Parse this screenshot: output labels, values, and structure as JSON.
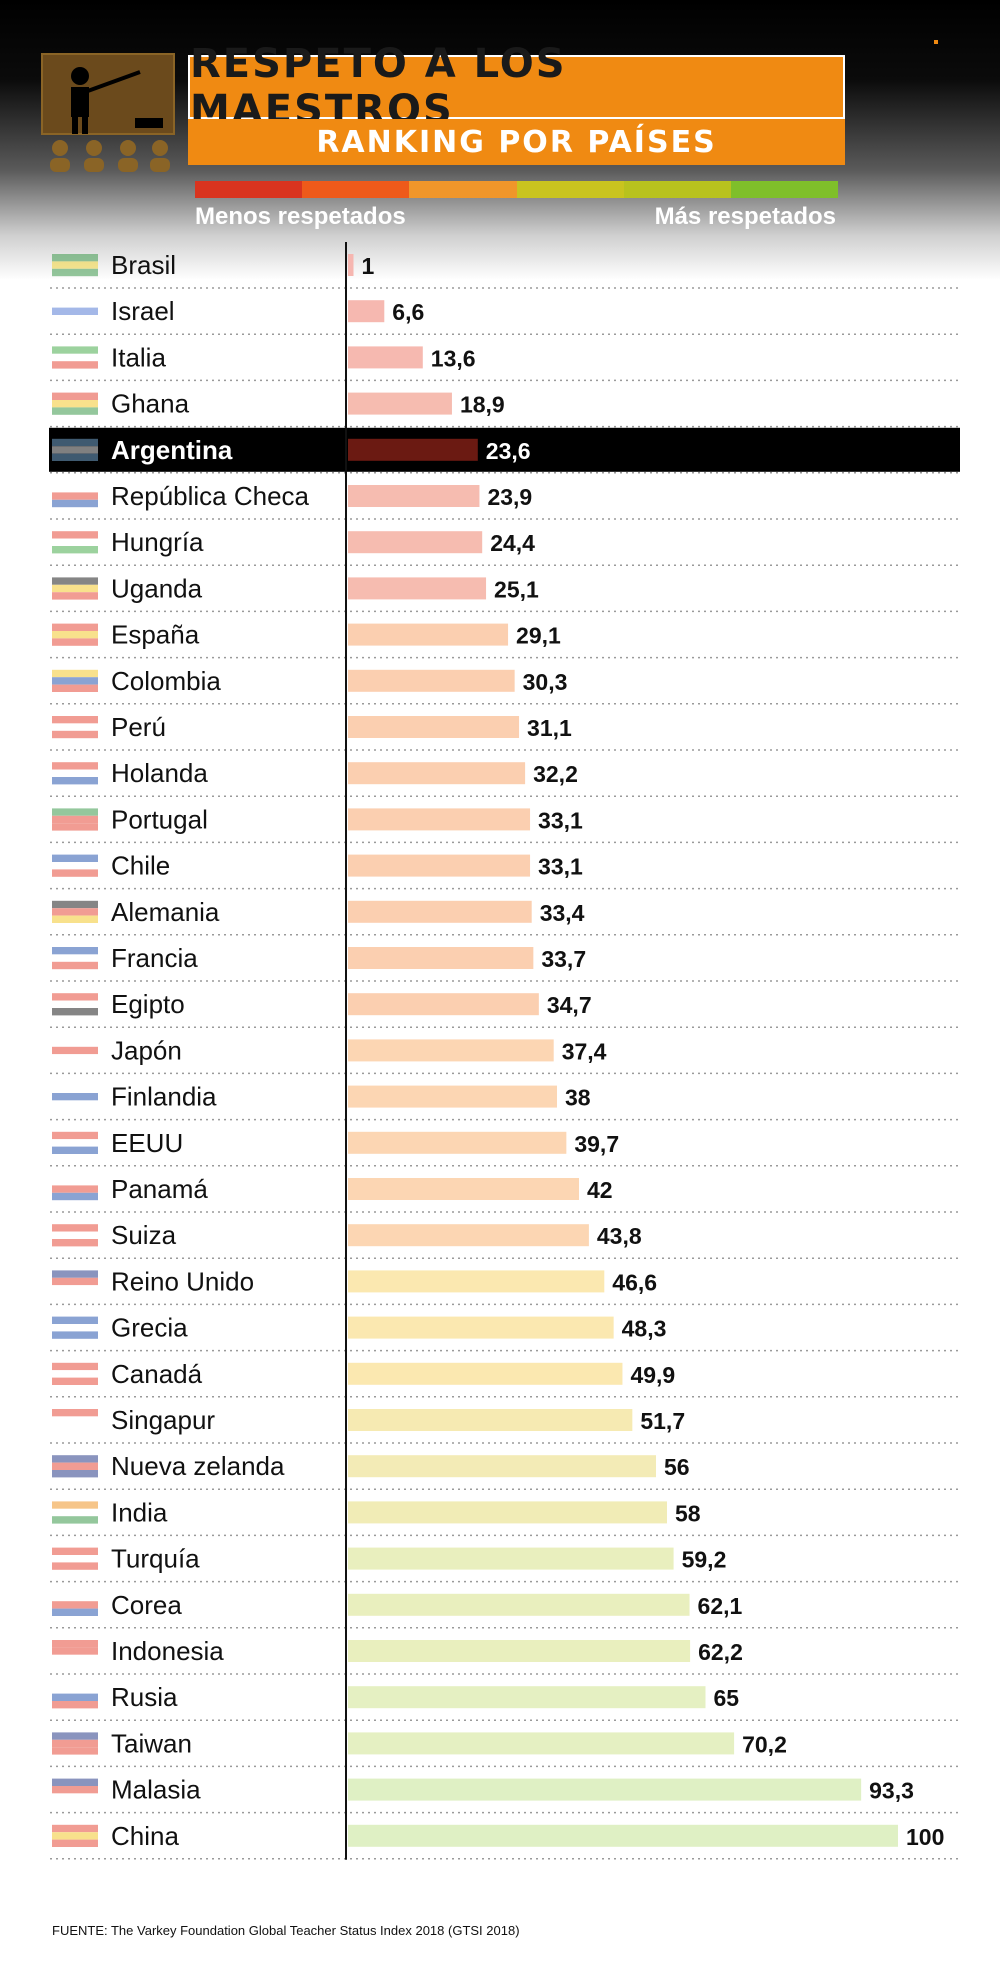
{
  "header": {
    "title": "RESPETO A LOS MAESTROS",
    "subtitle": "RANKING POR PAÍSES",
    "scale_left_label": "Menos respetados",
    "scale_right_label": "Más respetados",
    "scale_colors": [
      "#d9341f",
      "#ee5a1a",
      "#f0962a",
      "#c9c41f",
      "#b8c21e",
      "#7fbf2a"
    ],
    "icon": "teacher-classroom-icon"
  },
  "chart_data": {
    "type": "bar",
    "orientation": "horizontal",
    "title": "RESPETO A LOS MAESTROS",
    "subtitle": "RANKING POR PAÍSES",
    "highlight": "Argentina",
    "categories": [
      "Brasil",
      "Israel",
      "Italia",
      "Ghana",
      "Argentina",
      "República Checa",
      "Hungría",
      "Uganda",
      "España",
      "Colombia",
      "Perú",
      "Holanda",
      "Portugal",
      "Chile",
      "Alemania",
      "Francia",
      "Egipto",
      "Japón",
      "Finlandia",
      "EEUU",
      "Panamá",
      "Suiza",
      "Reino Unido",
      "Grecia",
      "Canadá",
      "Singapur",
      "Nueva zelanda",
      "India",
      "Turquía",
      "Corea",
      "Indonesia",
      "Rusia",
      "Taiwan",
      "Malasia",
      "China"
    ],
    "values": [
      1,
      6.6,
      13.6,
      18.9,
      23.6,
      23.9,
      24.4,
      25.1,
      29.1,
      30.3,
      31.1,
      32.2,
      33.1,
      33.1,
      33.4,
      33.7,
      34.7,
      37.4,
      38,
      39.7,
      42,
      43.8,
      46.6,
      48.3,
      49.9,
      51.7,
      56,
      58,
      59.2,
      62.1,
      62.2,
      65,
      70.2,
      93.3,
      100
    ],
    "value_labels": [
      "1",
      "6,6",
      "13,6",
      "18,9",
      "23,6",
      "23,9",
      "24,4",
      "25,1",
      "29,1",
      "30,3",
      "31,1",
      "32,2",
      "33,1",
      "33,1",
      "33,4",
      "33,7",
      "34,7",
      "37,4",
      "38",
      "39,7",
      "42",
      "43,8",
      "46,6",
      "48,3",
      "49,9",
      "51,7",
      "56",
      "58",
      "59,2",
      "62,1",
      "62,2",
      "65",
      "70,2",
      "93,3",
      "100"
    ],
    "bar_colors": [
      "#f6b6b0",
      "#f6b8b0",
      "#f6b9b0",
      "#f6bcb0",
      "#6b1a12",
      "#f6bcb0",
      "#f6bcb0",
      "#f6bcb0",
      "#fbcfb0",
      "#fbcfb0",
      "#fbcfb0",
      "#fbcfb0",
      "#fbcfb0",
      "#fbcfb0",
      "#fbcfb0",
      "#fbcfb0",
      "#fbcfb0",
      "#fcd6b3",
      "#fcd6b3",
      "#fcd6b3",
      "#fcd6b3",
      "#fcd6b3",
      "#fbe8b0",
      "#fbe8b0",
      "#fbe8b0",
      "#f6eab2",
      "#f3ebb6",
      "#f1ecb6",
      "#e9efbe",
      "#e9efbe",
      "#e9efbe",
      "#e5f0c2",
      "#e5f0c2",
      "#dff0c4",
      "#dff0c4"
    ],
    "flag_colors": [
      [
        "#3e9a4d",
        "#f1d43b",
        "#3e9a4d"
      ],
      [
        "#ffffff",
        "#5a7fd6",
        "#ffffff"
      ],
      [
        "#4caf50",
        "#ffffff",
        "#e74c3c"
      ],
      [
        "#e54a3a",
        "#f4c92f",
        "#3e9a4d"
      ],
      [
        "#7fb3e0",
        "#ffffff",
        "#7fb3e0"
      ],
      [
        "#ffffff",
        "#e74c3c",
        "#2c58b0"
      ],
      [
        "#e74c3c",
        "#ffffff",
        "#4caf50"
      ],
      [
        "#222222",
        "#f4c92f",
        "#e74c3c"
      ],
      [
        "#e74c3c",
        "#f4c92f",
        "#e74c3c"
      ],
      [
        "#f4c92f",
        "#2c58b0",
        "#e74c3c"
      ],
      [
        "#e74c3c",
        "#ffffff",
        "#e74c3c"
      ],
      [
        "#e74c3c",
        "#ffffff",
        "#2c58b0"
      ],
      [
        "#3e9a4d",
        "#e74c3c",
        "#e74c3c"
      ],
      [
        "#2c58b0",
        "#ffffff",
        "#e74c3c"
      ],
      [
        "#222222",
        "#e74c3c",
        "#f4c92f"
      ],
      [
        "#2c58b0",
        "#ffffff",
        "#e74c3c"
      ],
      [
        "#e74c3c",
        "#ffffff",
        "#222222"
      ],
      [
        "#ffffff",
        "#e74c3c",
        "#ffffff"
      ],
      [
        "#ffffff",
        "#2c58b0",
        "#ffffff"
      ],
      [
        "#e74c3c",
        "#ffffff",
        "#2c58b0"
      ],
      [
        "#ffffff",
        "#e74c3c",
        "#2c58b0"
      ],
      [
        "#e74c3c",
        "#ffffff",
        "#e74c3c"
      ],
      [
        "#2c3e8a",
        "#e74c3c",
        "#ffffff"
      ],
      [
        "#2c58b0",
        "#ffffff",
        "#2c58b0"
      ],
      [
        "#e74c3c",
        "#ffffff",
        "#e74c3c"
      ],
      [
        "#e74c3c",
        "#ffffff",
        "#ffffff"
      ],
      [
        "#2c3e8a",
        "#e74c3c",
        "#2c3e8a"
      ],
      [
        "#f0962a",
        "#ffffff",
        "#3e9a4d"
      ],
      [
        "#e74c3c",
        "#ffffff",
        "#e74c3c"
      ],
      [
        "#ffffff",
        "#e74c3c",
        "#2c58b0"
      ],
      [
        "#e74c3c",
        "#e74c3c",
        "#ffffff"
      ],
      [
        "#ffffff",
        "#2c58b0",
        "#e74c3c"
      ],
      [
        "#2c3e8a",
        "#e74c3c",
        "#e74c3c"
      ],
      [
        "#2c3e8a",
        "#e74c3c",
        "#ffffff"
      ],
      [
        "#e74c3c",
        "#f4c92f",
        "#e74c3c"
      ]
    ],
    "xlim": [
      0,
      100
    ],
    "xlabel": "",
    "ylabel": "",
    "grid": false
  },
  "footer": {
    "source": "FUENTE: The Varkey Foundation Global Teacher Status Index 2018 (GTSI 2018)"
  }
}
